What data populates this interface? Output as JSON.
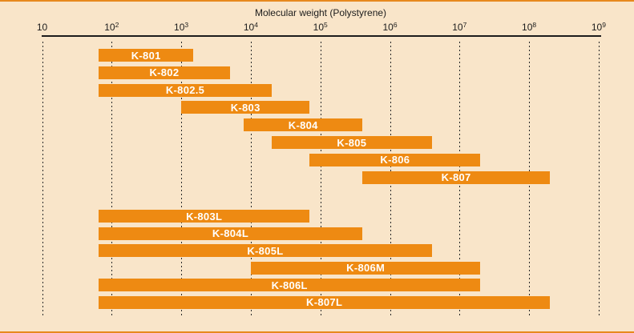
{
  "figure": {
    "background_color": "#f9e5c9",
    "border_color": "#e7891e",
    "text_color": "#1c1c1c",
    "bar_color": "#ee8a12",
    "bar_label_color": "#ffffff"
  },
  "chart_data": {
    "type": "bar",
    "subtype": "horizontal-log-range-bars",
    "title": "Molecular weight (Polystyrene)",
    "x_axis": {
      "scale": "log10",
      "min": 10,
      "max": 1000000000,
      "tick_exponents": [
        1,
        2,
        3,
        4,
        5,
        6,
        7,
        8,
        9
      ],
      "tick_base": "10",
      "gridlines": "vertical-dashed"
    },
    "series": [
      {
        "label": "K-801",
        "group": 0,
        "range": [
          65,
          1500
        ]
      },
      {
        "label": "K-802",
        "group": 0,
        "range": [
          65,
          5000
        ]
      },
      {
        "label": "K-802.5",
        "group": 0,
        "range": [
          65,
          20000
        ]
      },
      {
        "label": "K-803",
        "group": 0,
        "range": [
          1000,
          70000
        ]
      },
      {
        "label": "K-804",
        "group": 0,
        "range": [
          8000,
          400000
        ]
      },
      {
        "label": "K-805",
        "group": 0,
        "range": [
          20000,
          4000000
        ]
      },
      {
        "label": "K-806",
        "group": 0,
        "range": [
          70000,
          20000000
        ]
      },
      {
        "label": "K-807",
        "group": 0,
        "range": [
          400000,
          200000000
        ]
      },
      {
        "label": "K-803L",
        "group": 1,
        "range": [
          65,
          70000
        ]
      },
      {
        "label": "K-804L",
        "group": 1,
        "range": [
          65,
          400000
        ]
      },
      {
        "label": "K-805L",
        "group": 1,
        "range": [
          65,
          4000000
        ]
      },
      {
        "label": "K-806M",
        "group": 1,
        "range": [
          10000,
          20000000
        ]
      },
      {
        "label": "K-806L",
        "group": 1,
        "range": [
          65,
          20000000
        ]
      },
      {
        "label": "K-807L",
        "group": 1,
        "range": [
          65,
          200000000
        ]
      }
    ]
  }
}
